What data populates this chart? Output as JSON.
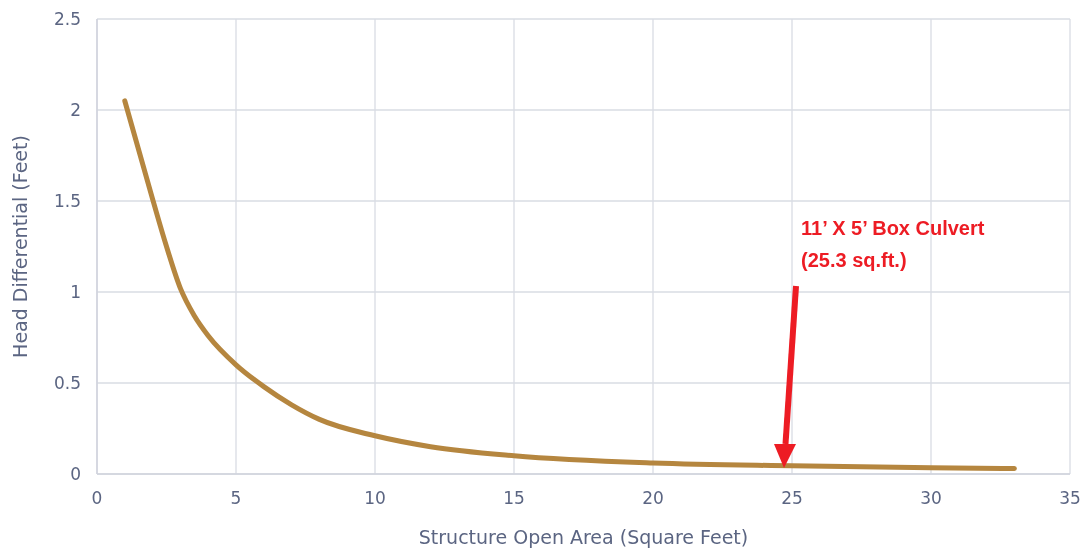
{
  "chart_data": {
    "type": "line",
    "xlabel": "Structure Open Area (Square Feet)",
    "ylabel": "Head Differential (Feet)",
    "x": [
      1,
      2,
      2.5,
      3,
      3.5,
      4,
      5,
      6,
      7,
      8,
      10,
      12,
      15,
      20,
      25,
      30,
      33
    ],
    "series": [
      {
        "color": "#b5863f",
        "values": [
          2.05,
          1.51,
          1.25,
          1.02,
          0.87,
          0.76,
          0.6,
          0.48,
          0.38,
          0.3,
          0.21,
          0.15,
          0.1,
          0.06,
          0.045,
          0.035,
          0.03
        ]
      }
    ],
    "xlim": [
      0,
      35
    ],
    "xticks": [
      0,
      5,
      10,
      15,
      20,
      25,
      30,
      35
    ],
    "ylim": [
      0,
      2.5
    ],
    "yticks": [
      0,
      0.5,
      1,
      1.5,
      2,
      2.5
    ],
    "grid": true,
    "legend": false,
    "marker": "none",
    "line_style": "solid",
    "annotations": [
      "11’ X 5’ Box Culvert\n(25.3 sq.ft.)"
    ]
  }
}
